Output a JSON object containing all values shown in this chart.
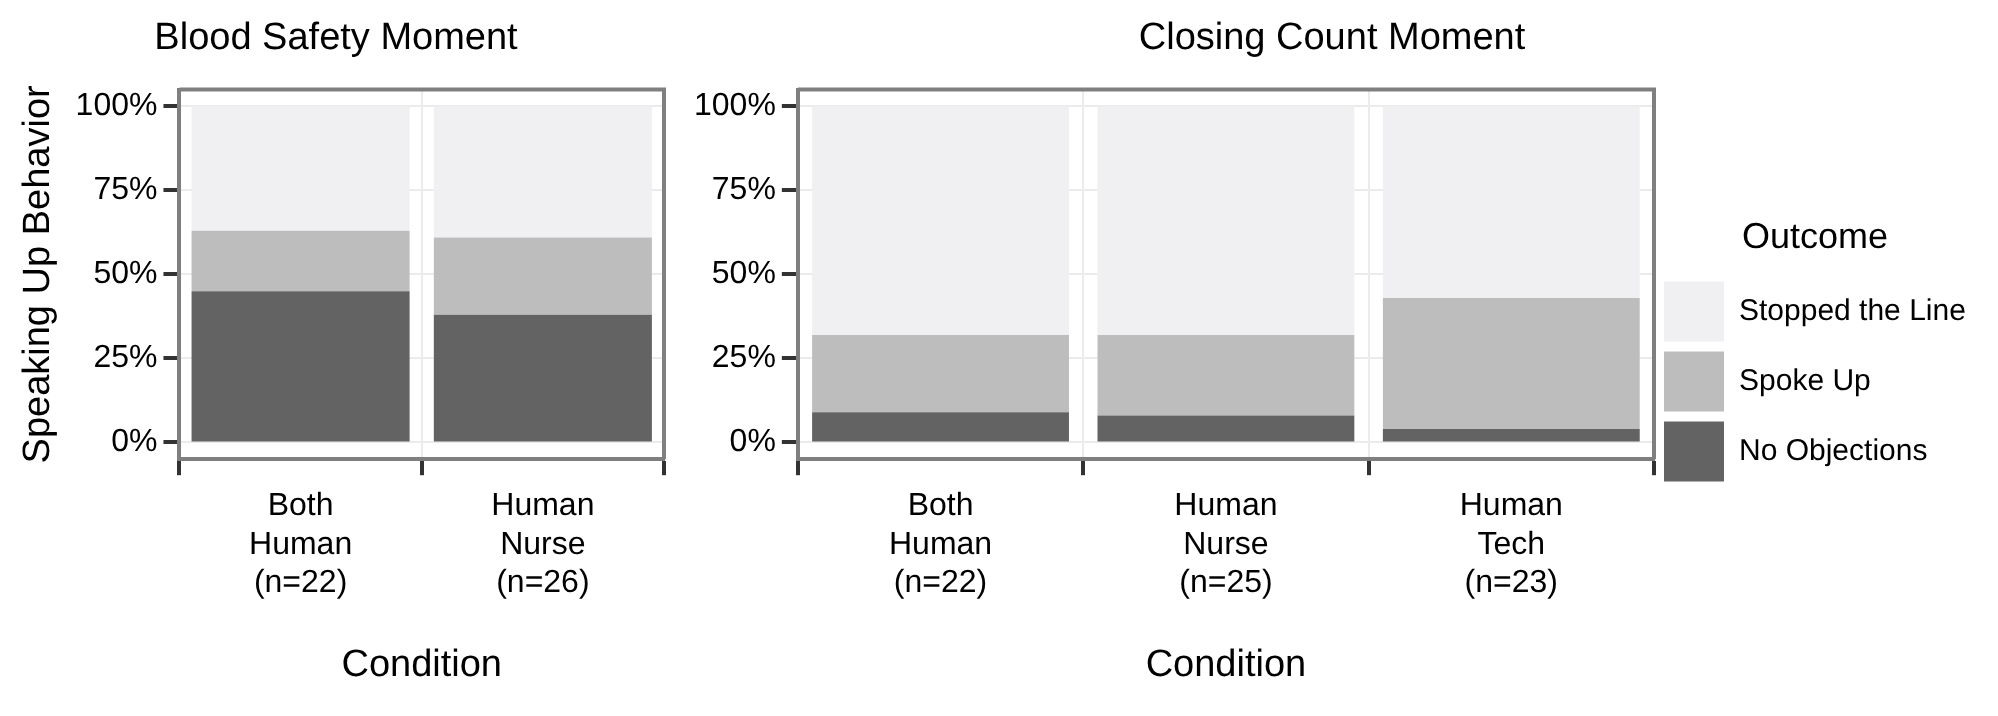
{
  "chart_data": [
    {
      "type": "bar",
      "title": "Blood Safety Moment",
      "xlabel": "Condition",
      "ylabel": "Speaking Up Behavior",
      "categories": [
        "Both Human (n=22)",
        "Human Nurse (n=26)"
      ],
      "stacked": true,
      "grid": true,
      "legend": false,
      "ylim": [
        -5,
        105
      ],
      "yticks": [
        {
          "value": 0,
          "label": "0%"
        },
        {
          "value": 25,
          "label": "25%"
        },
        {
          "value": 50,
          "label": "50%"
        },
        {
          "value": 75,
          "label": "75%"
        },
        {
          "value": 100,
          "label": "100%"
        }
      ],
      "series": [
        {
          "color": "#636363",
          "values": [
            45,
            38
          ]
        },
        {
          "color": "#bdbdbd",
          "values": [
            18,
            23
          ]
        },
        {
          "color": "#f0f0f2",
          "values": [
            37,
            39
          ]
        }
      ]
    },
    {
      "type": "bar",
      "title": "Closing Count Moment",
      "xlabel": "Condition",
      "legend_title": "Outcome",
      "categories": [
        "Both Human (n=22)",
        "Human Nurse (n=25)",
        "Human Tech (n=23)"
      ],
      "stacked": true,
      "grid": true,
      "legend": "right",
      "ylim": [
        -5,
        105
      ],
      "yticks": [
        {
          "value": 0,
          "label": "0%"
        },
        {
          "value": 25,
          "label": "25%"
        },
        {
          "value": 50,
          "label": "50%"
        },
        {
          "value": 75,
          "label": "75%"
        },
        {
          "value": 100,
          "label": "100%"
        }
      ],
      "series": [
        {
          "name": "No Objections",
          "color": "#636363",
          "values": [
            9,
            8,
            4
          ]
        },
        {
          "name": "Spoke Up",
          "color": "#bdbdbd",
          "values": [
            23,
            24,
            39
          ]
        },
        {
          "name": "Stopped the Line",
          "color": "#f0f0f2",
          "values": [
            68,
            68,
            57
          ]
        }
      ]
    }
  ]
}
